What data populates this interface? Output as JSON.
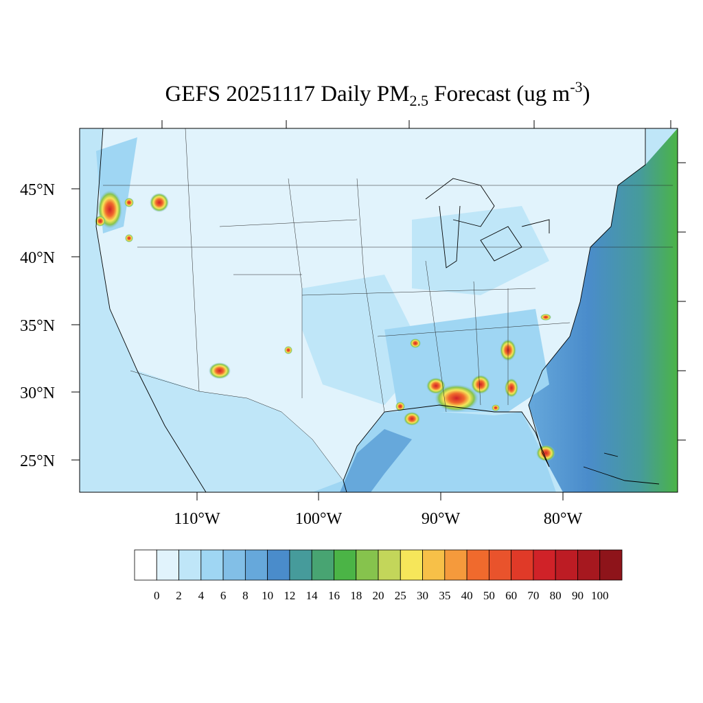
{
  "title": {
    "main": "GEFS 20251117 Daily PM",
    "sub": "2.5",
    "mid": " Forecast (ug m",
    "sup": "-3",
    "end": ")"
  },
  "lat_labels": [
    "45°N",
    "40°N",
    "35°N",
    "30°N",
    "25°N"
  ],
  "lon_labels": [
    "110°W",
    "100°W",
    "90°W",
    "80°W"
  ],
  "colorbar": {
    "colors": [
      "#ffffff",
      "#e1f3fc",
      "#bfe6f8",
      "#9fd6f3",
      "#82bfe7",
      "#66a8db",
      "#4a8ccb",
      "#469b9b",
      "#48a472",
      "#4bb446",
      "#86c34d",
      "#c3d65a",
      "#f6e65a",
      "#f7c048",
      "#f59a3c",
      "#f06a2d",
      "#e9532c",
      "#e03a28",
      "#d02228",
      "#bd1c24",
      "#a6181f",
      "#8e141a"
    ],
    "labels": [
      0,
      2,
      4,
      6,
      8,
      10,
      12,
      14,
      16,
      18,
      20,
      25,
      30,
      35,
      40,
      50,
      60,
      70,
      80,
      90,
      100
    ]
  }
}
